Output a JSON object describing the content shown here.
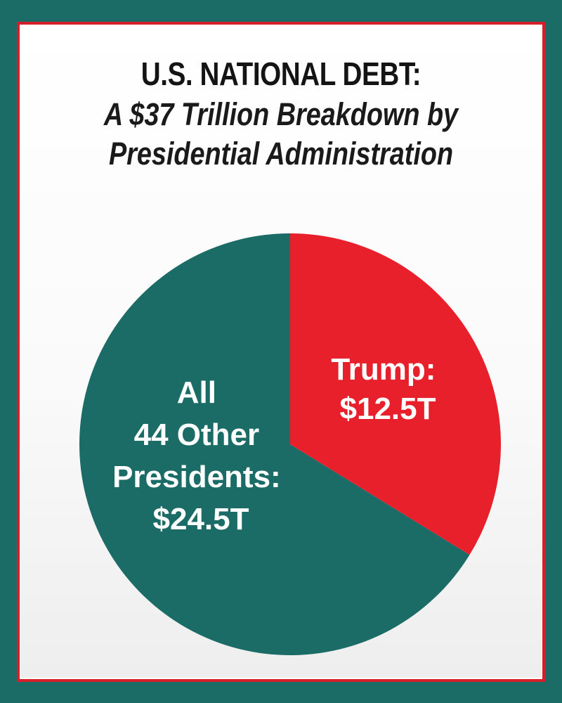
{
  "chart_data": {
    "type": "pie",
    "title": "U.S. NATIONAL DEBT:",
    "subtitle_lines": [
      "A $37 Trillion Breakdown by",
      "Presidential Administration"
    ],
    "slices": [
      {
        "label_lines": [
          "Trump:",
          "$12.5T"
        ],
        "value": 12.5,
        "color": "#e8202c"
      },
      {
        "label_lines": [
          "All",
          "44 Other",
          "Presidents:",
          "$24.5T"
        ],
        "value": 24.5,
        "color": "#1b6b66"
      }
    ],
    "start": "top, clockwise"
  },
  "colors": {
    "background": "#1b6b66",
    "border": "#d61f2b",
    "card": "#ffffff"
  }
}
